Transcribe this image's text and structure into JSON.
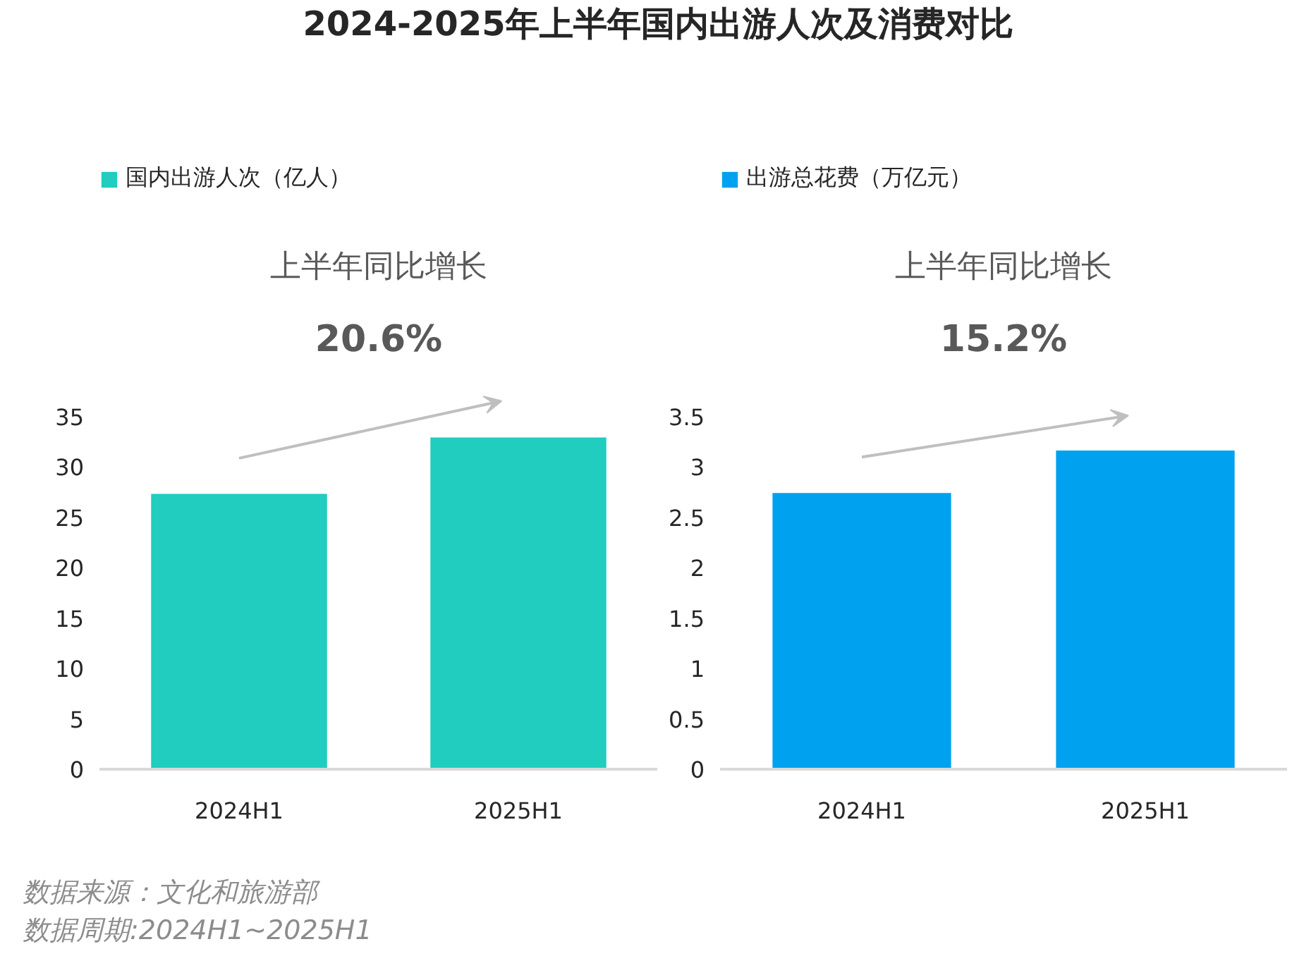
{
  "chart_data": [
    {
      "type": "bar",
      "title": "2024-2025年上半年国内出游人次及消费对比",
      "categories": [
        "2024H1",
        "2025H1"
      ],
      "series": [
        {
          "name": "国内出游人次（亿人）",
          "color": "#20cdbf",
          "values": [
            27.3,
            32.9
          ]
        }
      ],
      "ylim": [
        0,
        60
      ],
      "yticks": [
        0,
        5,
        10,
        15,
        20,
        25,
        30,
        35
      ],
      "legend": "top left",
      "annotations": [
        "上半年同比增长",
        "20.6%",
        "数据来源：文化和旅游部",
        "数据周期:2024H1~2025H1"
      ]
    },
    {
      "type": "bar",
      "categories": [
        "2024H1",
        "2025H1"
      ],
      "series": [
        {
          "name": "出游总花费（万亿元）",
          "color": "#00a2f0",
          "values": [
            2.74,
            3.16
          ]
        }
      ],
      "ylim": [
        0,
        6
      ],
      "yticks": [
        0,
        0.5,
        1,
        1.5,
        2,
        2.5,
        3,
        3.5
      ],
      "legend": "top left",
      "annotations": [
        "上半年同比增长",
        "15.2%"
      ]
    }
  ]
}
